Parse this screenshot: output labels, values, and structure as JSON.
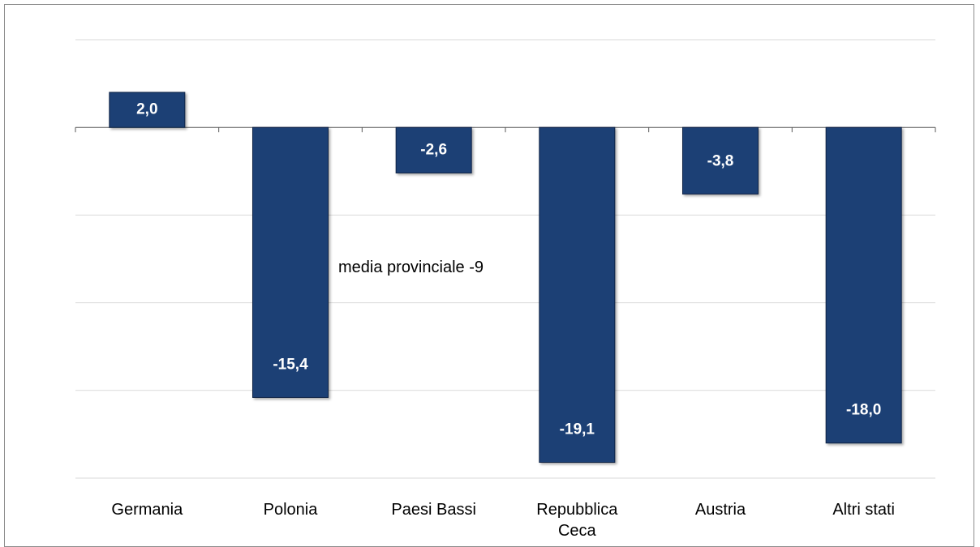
{
  "chart_data": {
    "type": "bar",
    "categories": [
      [
        "Germania"
      ],
      [
        "Polonia"
      ],
      [
        "Paesi Bassi"
      ],
      [
        "Repubblica",
        "Ceca"
      ],
      [
        "Austria"
      ],
      [
        "Altri stati"
      ]
    ],
    "values": [
      2.0,
      -15.4,
      -2.6,
      -19.1,
      -3.8,
      -18.0
    ],
    "value_labels": [
      "2,0",
      "-15,4",
      "-2,6",
      "-19,1",
      "-3,8",
      "-18,0"
    ],
    "ylim": [
      -20,
      5
    ],
    "grid": true,
    "reference_line": {
      "value": -9,
      "label": "media provinciale -9",
      "color": "#c00000"
    },
    "colors": {
      "bar": "#1f3f75",
      "bar_border": "#0f2245",
      "gridline": "#d9d9d9",
      "axis": "#595959"
    }
  }
}
